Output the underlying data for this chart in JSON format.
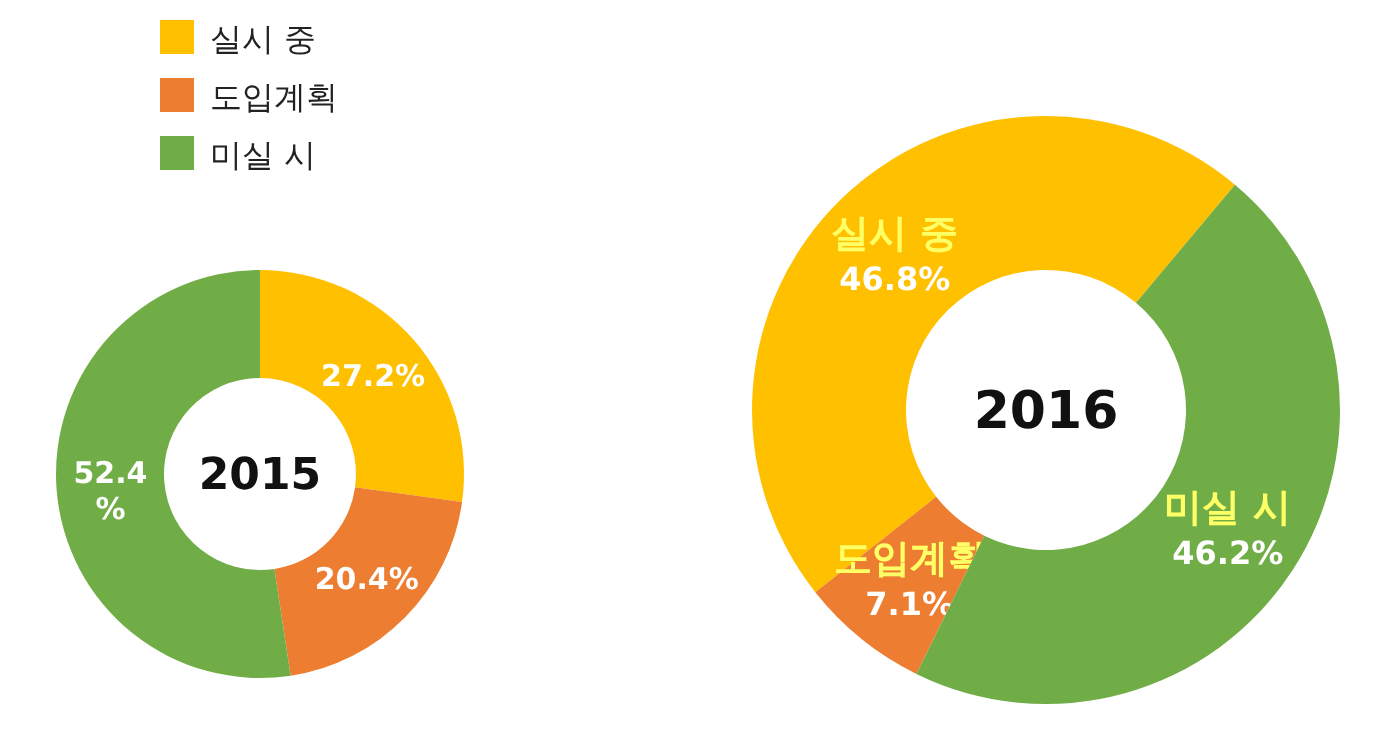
{
  "chart_data": [
    {
      "type": "donut",
      "title": "2015",
      "categories": [
        "실시 중",
        "도입계획",
        "미실 시"
      ],
      "values": [
        27.2,
        20.4,
        52.4
      ],
      "colors": [
        "#ffc000",
        "#ed7d31",
        "#70ad47"
      ],
      "value_labels": [
        "27.2%",
        "20.4%",
        "52.4%"
      ],
      "legend": "top left"
    },
    {
      "type": "donut",
      "title": "2016",
      "categories": [
        "실시 중",
        "도입계획",
        "미실 시"
      ],
      "values": [
        46.8,
        7.1,
        46.2
      ],
      "colors": [
        "#ffc000",
        "#ed7d31",
        "#70ad47"
      ],
      "value_labels": [
        "46.8%",
        "7.1%",
        "46.2%"
      ]
    }
  ]
}
